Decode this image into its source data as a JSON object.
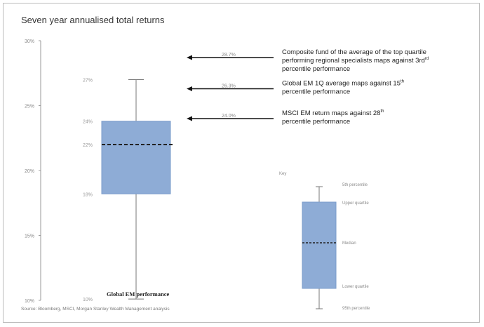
{
  "chart_data": {
    "type": "boxplot",
    "title": "Seven year annualised total returns",
    "y_ticks": [
      "30%",
      "25%",
      "20%",
      "15%",
      "10%"
    ],
    "ylim": [
      10,
      30
    ],
    "box": {
      "category": "Global EM performance",
      "max": 27.0,
      "max_label": "27%",
      "q3": 23.8,
      "q3_label": "24%",
      "median": 22.0,
      "median_label": "22%",
      "q1": 18.2,
      "q1_label": "18%",
      "min": 10.1,
      "min_label": "10%"
    },
    "annotations": [
      {
        "value": 28.7,
        "value_label": "28.7%",
        "text_lines": [
          "Composite fund of the average of the top quartile",
          "performing regional specialists maps against 3rd",
          "percentile performance"
        ],
        "superscript": "rd"
      },
      {
        "value": 26.3,
        "value_label": "26.3%",
        "text_lines": [
          "Global EM 1Q average maps against 15",
          "percentile performance"
        ],
        "superscript": "th"
      },
      {
        "value": 24.0,
        "value_label": "24.0%",
        "text_lines": [
          "MSCI EM return maps against 28",
          "percentile performance"
        ],
        "superscript": "th"
      }
    ],
    "legend": {
      "title": "Key",
      "labels": [
        "5th percentile",
        "Upper quartile",
        "Median",
        "Lower quartile",
        "95th percentile"
      ]
    },
    "source": "Source: Bloomberg, MSCI, Morgan Stanley Wealth Management analysis",
    "colors": {
      "box": "#8eacd6",
      "box_stroke": "#7b9ccb",
      "median_line": "#222222",
      "arrow": "#111111",
      "whisker": "#777777"
    }
  }
}
